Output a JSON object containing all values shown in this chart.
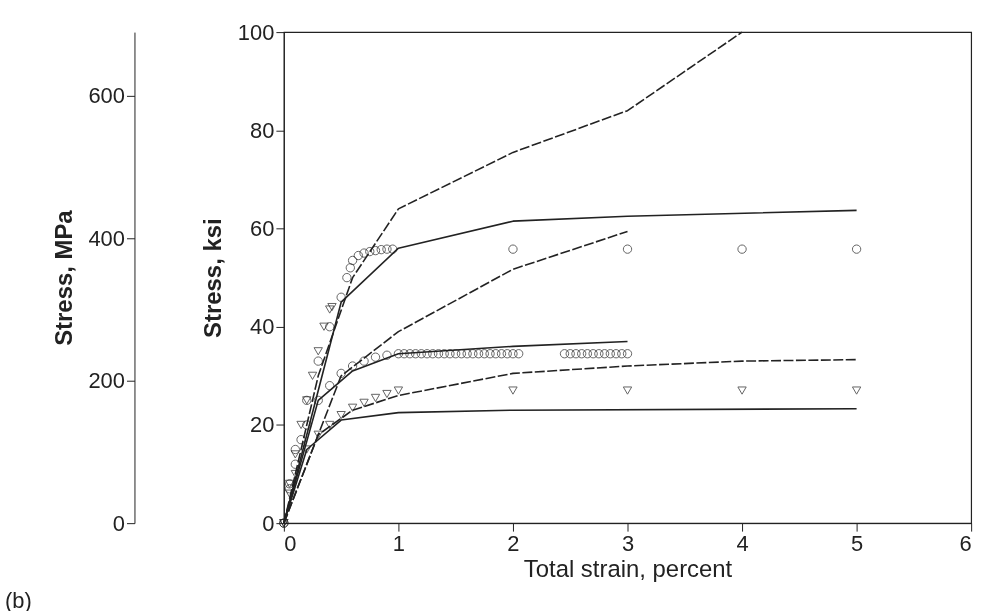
{
  "chart_data": {
    "type": "line",
    "xlabel": "Total strain, percent",
    "ylabel": "Stress, ksi",
    "y2label": "Stress, MPa",
    "xlim": [
      0,
      6
    ],
    "xticks": [
      0,
      1,
      2,
      3,
      4,
      5,
      6
    ],
    "ylim": [
      0,
      100
    ],
    "yticks": [
      0,
      20,
      40,
      60,
      80,
      100
    ],
    "y2lim": [
      0,
      689.5
    ],
    "y2ticks": [
      0,
      200,
      400,
      600
    ],
    "grid": false,
    "annotations": [
      "(b)"
    ],
    "series": [
      {
        "type": "line",
        "line_style": "dashed",
        "color": "#222222",
        "x": [
          0,
          0.3,
          0.6,
          1,
          2,
          3,
          4
        ],
        "values": [
          0,
          30,
          50,
          64,
          75.5,
          84,
          100
        ]
      },
      {
        "type": "line",
        "line_style": "dashed",
        "color": "#222222",
        "x": [
          0,
          0.5,
          1,
          2,
          3
        ],
        "values": [
          0,
          30,
          39,
          51.7,
          59.4
        ]
      },
      {
        "type": "line",
        "line_style": "dashed",
        "color": "#222222",
        "x": [
          0,
          0.3,
          0.6,
          1,
          2,
          3,
          4,
          5
        ],
        "values": [
          0,
          18,
          23,
          26,
          30.5,
          32,
          33,
          33.3
        ]
      },
      {
        "type": "line",
        "line_style": "solid",
        "color": "#222222",
        "x": [
          0,
          0.5,
          1,
          2,
          3,
          5
        ],
        "values": [
          0,
          45,
          56,
          61.5,
          62.5,
          63.7
        ]
      },
      {
        "type": "line",
        "line_style": "solid",
        "color": "#222222",
        "x": [
          0,
          0.3,
          0.6,
          1,
          2,
          3
        ],
        "values": [
          0,
          25,
          31,
          34.5,
          36,
          37
        ]
      },
      {
        "type": "line",
        "line_style": "solid",
        "color": "#222222",
        "x": [
          0,
          0.2,
          0.5,
          1,
          2,
          5
        ],
        "values": [
          0,
          15,
          21,
          22.5,
          23,
          23.3
        ]
      },
      {
        "type": "scatter",
        "marker": "circle",
        "color": "#222222",
        "x": [
          0,
          0.05,
          0.1,
          0.2,
          0.3,
          0.4,
          0.5,
          0.55,
          0.58,
          0.6,
          0.65,
          0.7,
          0.75,
          0.8,
          0.85,
          0.9,
          0.95,
          2,
          3,
          4,
          5
        ],
        "values": [
          0,
          8,
          15,
          25,
          33,
          40,
          46,
          50,
          52,
          53.5,
          54.5,
          55,
          55.3,
          55.5,
          55.7,
          55.8,
          55.8,
          55.8,
          55.8,
          55.8,
          55.8
        ]
      },
      {
        "type": "scatter",
        "marker": "triangle",
        "color": "#222222",
        "x": [
          0,
          0.05,
          0.1,
          0.15,
          0.2,
          0.25,
          0.3,
          0.35,
          0.4,
          0.42
        ],
        "values": [
          0,
          8,
          14,
          20,
          25,
          30,
          35,
          40,
          43.5,
          44
        ]
      },
      {
        "type": "scatter",
        "marker": "circle",
        "color": "#222222",
        "x": [
          0,
          0.05,
          0.1,
          0.15,
          0.2,
          0.3,
          0.4,
          0.5,
          0.6,
          0.7,
          0.8,
          0.9,
          1.0,
          1.05,
          1.1,
          1.15,
          1.2,
          1.25,
          1.3,
          1.35,
          1.4,
          1.45,
          1.5,
          1.55,
          1.6,
          1.65,
          1.7,
          1.75,
          1.8,
          1.85,
          1.9,
          1.95,
          2.0,
          2.05,
          2.45,
          2.5,
          2.55,
          2.6,
          2.65,
          2.7,
          2.75,
          2.8,
          2.85,
          2.9,
          2.95,
          3.0
        ],
        "values": [
          0,
          7,
          12,
          17,
          20,
          25,
          28,
          30.5,
          32,
          33,
          33.8,
          34.2,
          34.5,
          34.5,
          34.5,
          34.5,
          34.5,
          34.5,
          34.5,
          34.5,
          34.5,
          34.5,
          34.5,
          34.5,
          34.5,
          34.5,
          34.5,
          34.5,
          34.5,
          34.5,
          34.5,
          34.5,
          34.5,
          34.5,
          34.5,
          34.5,
          34.5,
          34.5,
          34.5,
          34.5,
          34.5,
          34.5,
          34.5,
          34.5,
          34.5,
          34.5
        ]
      },
      {
        "type": "scatter",
        "marker": "triangle",
        "color": "#222222",
        "x": [
          0,
          0.05,
          0.1,
          0.2,
          0.3,
          0.4,
          0.5,
          0.6,
          0.7,
          0.8,
          0.9,
          1.0,
          2,
          3,
          4,
          5
        ],
        "values": [
          0,
          6,
          10,
          15,
          18,
          20,
          22,
          23.5,
          24.5,
          25.5,
          26.3,
          27,
          27,
          27,
          27,
          27
        ]
      }
    ]
  }
}
